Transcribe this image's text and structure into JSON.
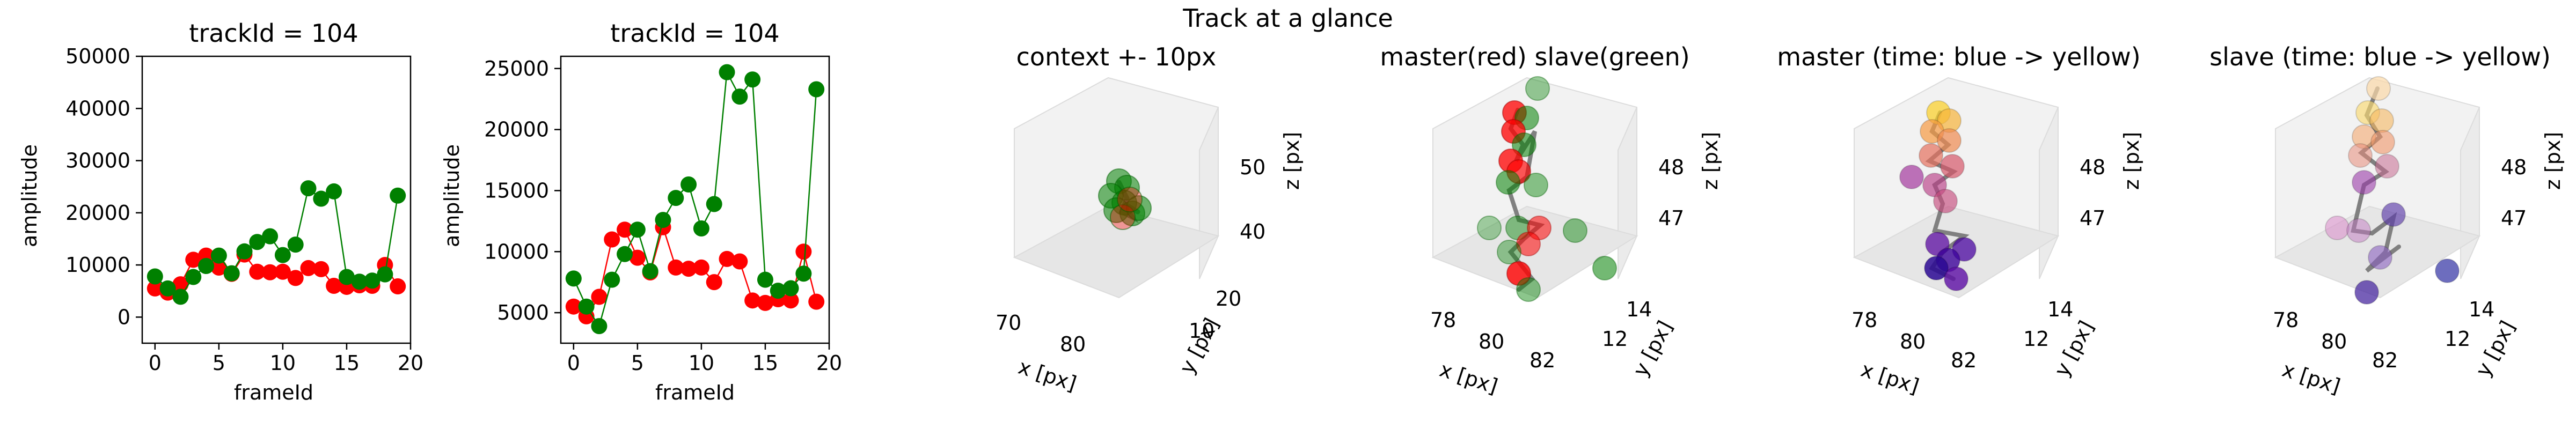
{
  "suptitle": "Track at a glance",
  "chart_data": [
    {
      "type": "line",
      "title": "trackId = 104",
      "xlabel": "frameId",
      "ylabel": "amplitude",
      "xlim": [
        -1,
        20
      ],
      "ylim": [
        -5000,
        50000
      ],
      "xticks": [
        "0",
        "5",
        "10",
        "15",
        "20"
      ],
      "yticks": [
        "0",
        "10000",
        "20000",
        "30000",
        "40000",
        "50000"
      ],
      "grid": false,
      "series": [
        {
          "color": "#ff0000",
          "x": [
            0,
            1,
            2,
            3,
            4,
            5,
            6,
            7,
            8,
            9,
            10,
            11,
            12,
            13,
            14,
            15,
            16,
            17,
            18,
            19
          ],
          "values": [
            5500,
            4700,
            6300,
            11000,
            11800,
            9500,
            8300,
            12000,
            8700,
            8600,
            8700,
            7500,
            9400,
            9200,
            6000,
            5800,
            6100,
            6000,
            10000,
            5900
          ]
        },
        {
          "color": "#008000",
          "x": [
            0,
            1,
            2,
            3,
            4,
            5,
            6,
            7,
            8,
            9,
            10,
            11,
            12,
            13,
            14,
            15,
            16,
            17,
            18,
            19
          ],
          "values": [
            7800,
            5500,
            3900,
            7700,
            9800,
            11800,
            8400,
            12600,
            14400,
            15500,
            11900,
            13900,
            24700,
            22700,
            24100,
            7700,
            6800,
            7000,
            8200,
            23300
          ]
        }
      ]
    },
    {
      "type": "line",
      "title": "trackId = 104",
      "xlabel": "frameId",
      "ylabel": "amplitude",
      "xlim": [
        -1,
        20
      ],
      "ylim": [
        2500,
        26000
      ],
      "xticks": [
        "0",
        "5",
        "10",
        "15",
        "20"
      ],
      "yticks": [
        "5000",
        "10000",
        "15000",
        "20000",
        "25000"
      ],
      "grid": false,
      "series": [
        {
          "color": "#ff0000",
          "x": [
            0,
            1,
            2,
            3,
            4,
            5,
            6,
            7,
            8,
            9,
            10,
            11,
            12,
            13,
            14,
            15,
            16,
            17,
            18,
            19
          ],
          "values": [
            5500,
            4700,
            6300,
            11000,
            11800,
            9500,
            8300,
            12000,
            8700,
            8600,
            8700,
            7500,
            9400,
            9200,
            6000,
            5800,
            6100,
            6000,
            10000,
            5900
          ]
        },
        {
          "color": "#008000",
          "x": [
            0,
            1,
            2,
            3,
            4,
            5,
            6,
            7,
            8,
            9,
            10,
            11,
            12,
            13,
            14,
            15,
            16,
            17,
            18,
            19
          ],
          "values": [
            7800,
            5500,
            3900,
            7700,
            9800,
            11800,
            8400,
            12600,
            14400,
            15500,
            11900,
            13900,
            24700,
            22700,
            24100,
            7700,
            6800,
            7000,
            8200,
            23300
          ]
        }
      ]
    },
    {
      "type": "scatter",
      "title": "context +- 10px",
      "xlabel": "x [px]",
      "ylabel": "y [px]",
      "zlabel": "z [px]",
      "xticks": [
        "70",
        "80"
      ],
      "yticks": [
        "10",
        "20"
      ],
      "zticks": [
        "40",
        "50"
      ]
    },
    {
      "type": "scatter",
      "title": "master(red) slave(green)",
      "xlabel": "x [px]",
      "ylabel": "y [px]",
      "zlabel": "z [px]",
      "xticks": [
        "78",
        "80",
        "82"
      ],
      "yticks": [
        "12",
        "14"
      ],
      "zticks": [
        "47",
        "48"
      ]
    },
    {
      "type": "scatter",
      "title": "master (time: blue -> yellow)",
      "xlabel": "x [px]",
      "ylabel": "y [px]",
      "zlabel": "z [px]",
      "xticks": [
        "78",
        "80",
        "82"
      ],
      "yticks": [
        "12",
        "14"
      ],
      "zticks": [
        "47",
        "48"
      ]
    },
    {
      "type": "scatter",
      "title": "slave (time: blue -> yellow)",
      "xlabel": "x [px]",
      "ylabel": "y [px]",
      "zlabel": "z [px]",
      "xticks": [
        "78",
        "80",
        "82"
      ],
      "yticks": [
        "12",
        "14"
      ],
      "zticks": [
        "47",
        "48"
      ]
    }
  ]
}
